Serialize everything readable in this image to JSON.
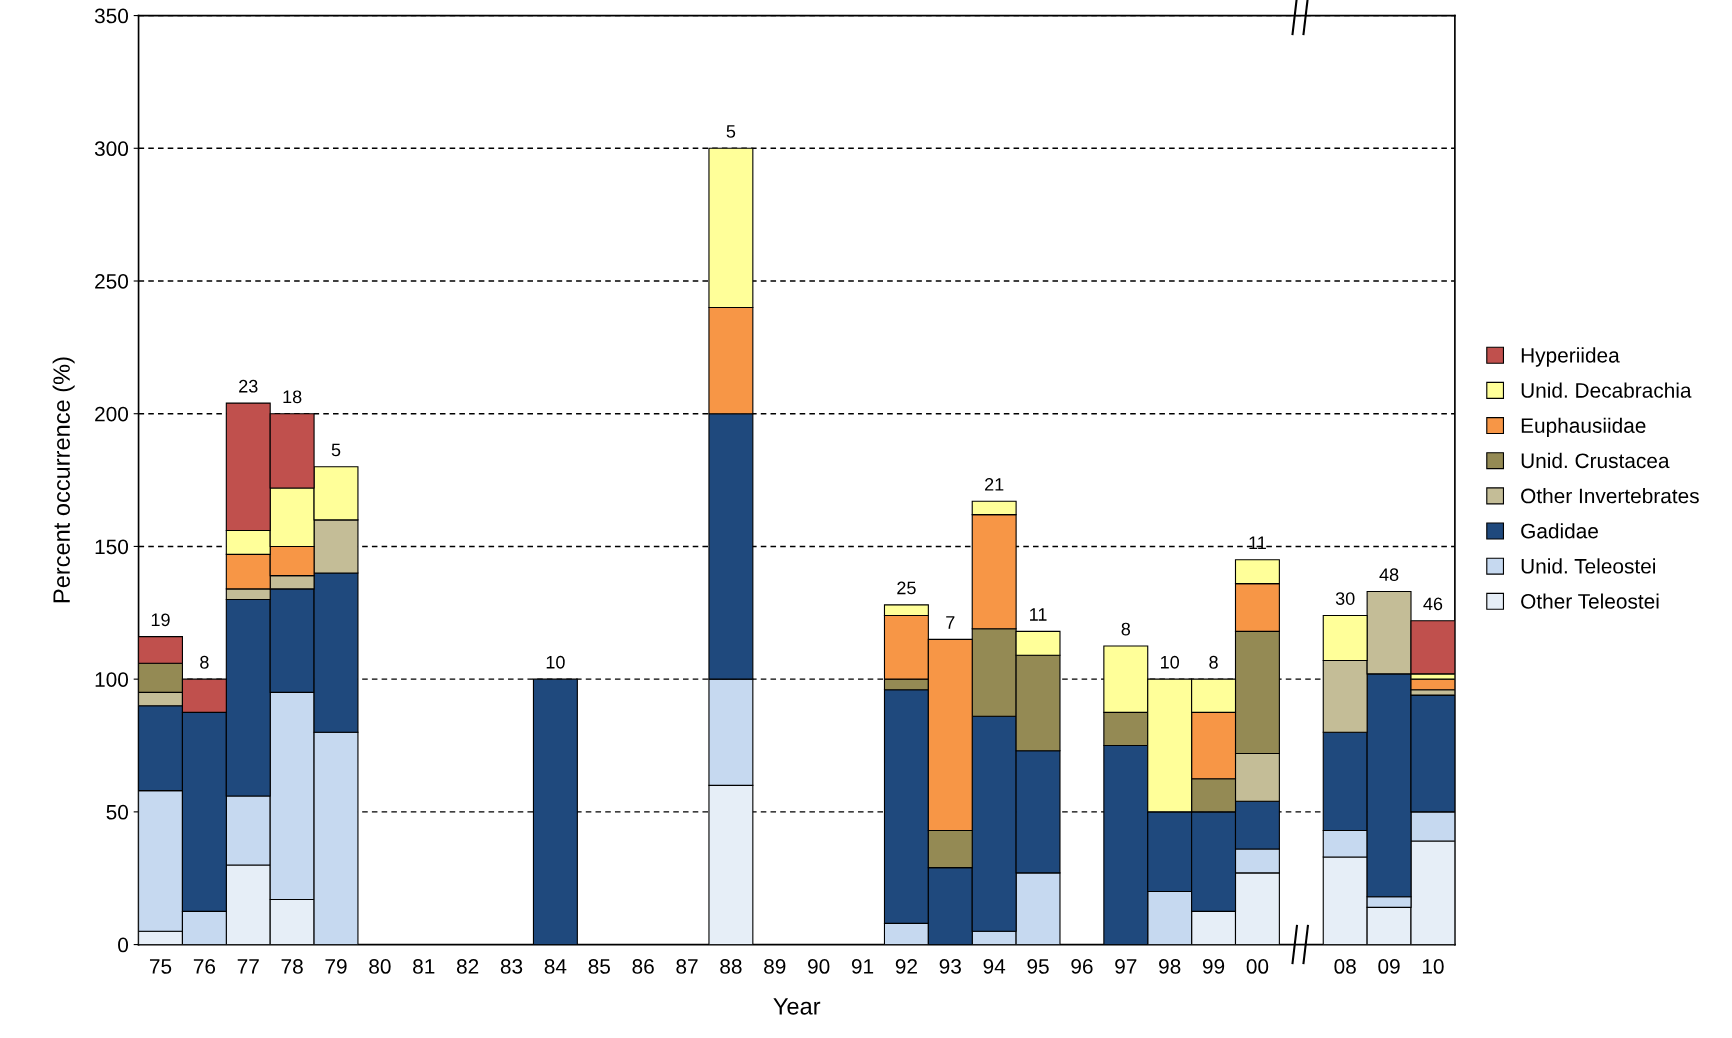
{
  "chart_data": {
    "type": "bar",
    "stacked": true,
    "xlabel": "Year",
    "ylabel": "Percent occurrence (%)",
    "categories": [
      "75",
      "76",
      "77",
      "78",
      "79",
      "80",
      "81",
      "82",
      "83",
      "84",
      "85",
      "86",
      "87",
      "88",
      "89",
      "90",
      "91",
      "92",
      "93",
      "94",
      "95",
      "96",
      "97",
      "98",
      "99",
      "00",
      null,
      "08",
      "09",
      "10"
    ],
    "ylim": [
      0,
      350
    ],
    "yticks": [
      0,
      50,
      100,
      150,
      200,
      250,
      300,
      350
    ],
    "grid": "y",
    "legend": "right",
    "series": [
      {
        "name": "Other Teleostei",
        "color": "#e6eef7",
        "values": [
          5,
          0,
          30,
          17,
          0,
          0,
          0,
          0,
          0,
          0,
          0,
          0,
          0,
          60,
          0,
          0,
          0,
          0,
          0,
          0,
          0,
          0,
          0,
          0,
          12.5,
          27,
          null,
          33,
          14,
          39
        ]
      },
      {
        "name": "Unid. Teleostei",
        "color": "#c6d9f0",
        "values": [
          53,
          12.5,
          26,
          78,
          80,
          0,
          0,
          0,
          0,
          0,
          0,
          0,
          0,
          40,
          0,
          0,
          0,
          8,
          0,
          5,
          27,
          0,
          0,
          20,
          0,
          9,
          null,
          10,
          4,
          11
        ]
      },
      {
        "name": "Gadidae",
        "color": "#1f497d",
        "values": [
          32,
          75,
          74,
          39,
          60,
          0,
          0,
          0,
          0,
          100,
          0,
          0,
          0,
          100,
          0,
          0,
          0,
          88,
          29,
          81,
          46,
          0,
          75,
          30,
          37.5,
          18,
          null,
          37,
          84,
          44
        ]
      },
      {
        "name": "Other Invertebrates",
        "color": "#c4bd97",
        "values": [
          5,
          0,
          4,
          5,
          20,
          0,
          0,
          0,
          0,
          0,
          0,
          0,
          0,
          0,
          0,
          0,
          0,
          0,
          0,
          0,
          0,
          0,
          0,
          0,
          0,
          18,
          null,
          27,
          31,
          2
        ]
      },
      {
        "name": "Unid. Crustacea",
        "color": "#948a54",
        "values": [
          11,
          0,
          0,
          0,
          0,
          0,
          0,
          0,
          0,
          0,
          0,
          0,
          0,
          0,
          0,
          0,
          0,
          4,
          14,
          33,
          36,
          0,
          12.5,
          0,
          12.5,
          46,
          null,
          0,
          0,
          0
        ]
      },
      {
        "name": "Euphausiidae",
        "color": "#f79646",
        "values": [
          0,
          0,
          13,
          11,
          0,
          0,
          0,
          0,
          0,
          0,
          0,
          0,
          0,
          40,
          0,
          0,
          0,
          24,
          72,
          43,
          0,
          0,
          0,
          0,
          25,
          18,
          null,
          0,
          0,
          4
        ]
      },
      {
        "name": "Unid. Decabrachia",
        "color": "#ffff99",
        "values": [
          0,
          0,
          9,
          22,
          20,
          0,
          0,
          0,
          0,
          0,
          0,
          0,
          0,
          60,
          0,
          0,
          0,
          4,
          0,
          5,
          9,
          0,
          25,
          50,
          12.5,
          9,
          null,
          17,
          0,
          2
        ]
      },
      {
        "name": "Hyperiidea",
        "color": "#c0504d",
        "values": [
          10,
          12.5,
          48,
          28,
          0,
          0,
          0,
          0,
          0,
          0,
          0,
          0,
          0,
          0,
          0,
          0,
          0,
          0,
          0,
          0,
          0,
          0,
          0,
          0,
          0,
          0,
          null,
          0,
          0,
          20
        ]
      }
    ],
    "annotations": [
      {
        "text": "19",
        "x": "75",
        "y": 116
      },
      {
        "text": "8",
        "x": "76",
        "y": 100
      },
      {
        "text": "23",
        "x": "77",
        "y": 204
      },
      {
        "text": "18",
        "x": "78",
        "y": 200
      },
      {
        "text": "5",
        "x": "79",
        "y": 180
      },
      {
        "text": "10",
        "x": "84",
        "y": 100
      },
      {
        "text": "5",
        "x": "88",
        "y": 300
      },
      {
        "text": "25",
        "x": "92",
        "y": 128
      },
      {
        "text": "7",
        "x": "93",
        "y": 115
      },
      {
        "text": "21",
        "x": "94",
        "y": 167
      },
      {
        "text": "11",
        "x": "95",
        "y": 118
      },
      {
        "text": "8",
        "x": "97",
        "y": 112.5
      },
      {
        "text": "10",
        "x": "98",
        "y": 100
      },
      {
        "text": "8",
        "x": "99",
        "y": 100
      },
      {
        "text": "11",
        "x": "00",
        "y": 145
      },
      {
        "text": "30",
        "x": "08",
        "y": 124
      },
      {
        "text": "48",
        "x": "09",
        "y": 133
      },
      {
        "text": "46",
        "x": "10",
        "y": 122
      }
    ]
  }
}
